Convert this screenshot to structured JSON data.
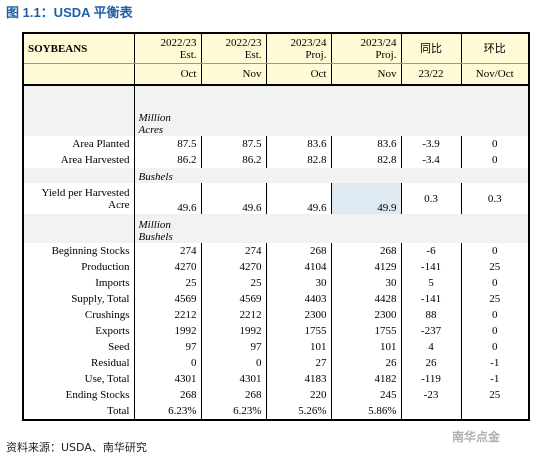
{
  "header": {
    "title": "图 1.1：USDA 平衡表"
  },
  "table": {
    "top": [
      "SOYBEANS",
      [
        "2022/23",
        "Est."
      ],
      [
        "2022/23",
        "Est."
      ],
      [
        "2023/24",
        "Proj."
      ],
      [
        "2023/24",
        "Proj."
      ],
      "同比",
      "环比"
    ],
    "sub": [
      "Oct",
      "Nov",
      "Oct",
      "Nov",
      "23/22",
      "Nov/Oct"
    ],
    "rows": [
      {
        "unit": "Million Acres"
      },
      {
        "label": "Area Planted",
        "values": [
          "87.5",
          "87.5",
          "83.6",
          "83.6",
          "-3.9",
          "0"
        ]
      },
      {
        "label": "Area Harvested",
        "values": [
          "86.2",
          "86.2",
          "82.8",
          "82.8",
          "-3.4",
          "0"
        ]
      },
      {
        "unit": "Bushels"
      },
      {
        "label": "Yield per Harvested Acre",
        "values": [
          "49.6",
          "49.6",
          "49.6",
          "49.9",
          "0.3",
          "0.3"
        ]
      },
      {
        "unit": "Million Bushels"
      },
      {
        "label": "Beginning Stocks",
        "values": [
          "274",
          "274",
          "268",
          "268",
          "-6",
          "0"
        ]
      },
      {
        "label": "Production",
        "values": [
          "4270",
          "4270",
          "4104",
          "4129",
          "-141",
          "25"
        ]
      },
      {
        "label": "Imports",
        "values": [
          "25",
          "25",
          "30",
          "30",
          "5",
          "0"
        ]
      },
      {
        "label": "Supply, Total",
        "values": [
          "4569",
          "4569",
          "4403",
          "4428",
          "-141",
          "25"
        ]
      },
      {
        "label": "Crushings",
        "values": [
          "2212",
          "2212",
          "2300",
          "2300",
          "88",
          "0"
        ]
      },
      {
        "label": "Exports",
        "values": [
          "1992",
          "1992",
          "1755",
          "1755",
          "-237",
          "0"
        ]
      },
      {
        "label": "Seed",
        "values": [
          "97",
          "97",
          "101",
          "101",
          "4",
          "0"
        ]
      },
      {
        "label": "Residual",
        "values": [
          "0",
          "0",
          "27",
          "26",
          "26",
          "-1"
        ]
      },
      {
        "label": "Use, Total",
        "values": [
          "4301",
          "4301",
          "4183",
          "4182",
          "-119",
          "-1"
        ]
      },
      {
        "label": "Ending Stocks",
        "values": [
          "268",
          "268",
          "220",
          "245",
          "-23",
          "25"
        ]
      },
      {
        "label": "Total",
        "values": [
          "6.23%",
          "6.23%",
          "5.26%",
          "5.86%"
        ]
      }
    ]
  },
  "footer": {
    "source": "资料来源：USDA、南华研究",
    "watermark": "南华点金"
  }
}
